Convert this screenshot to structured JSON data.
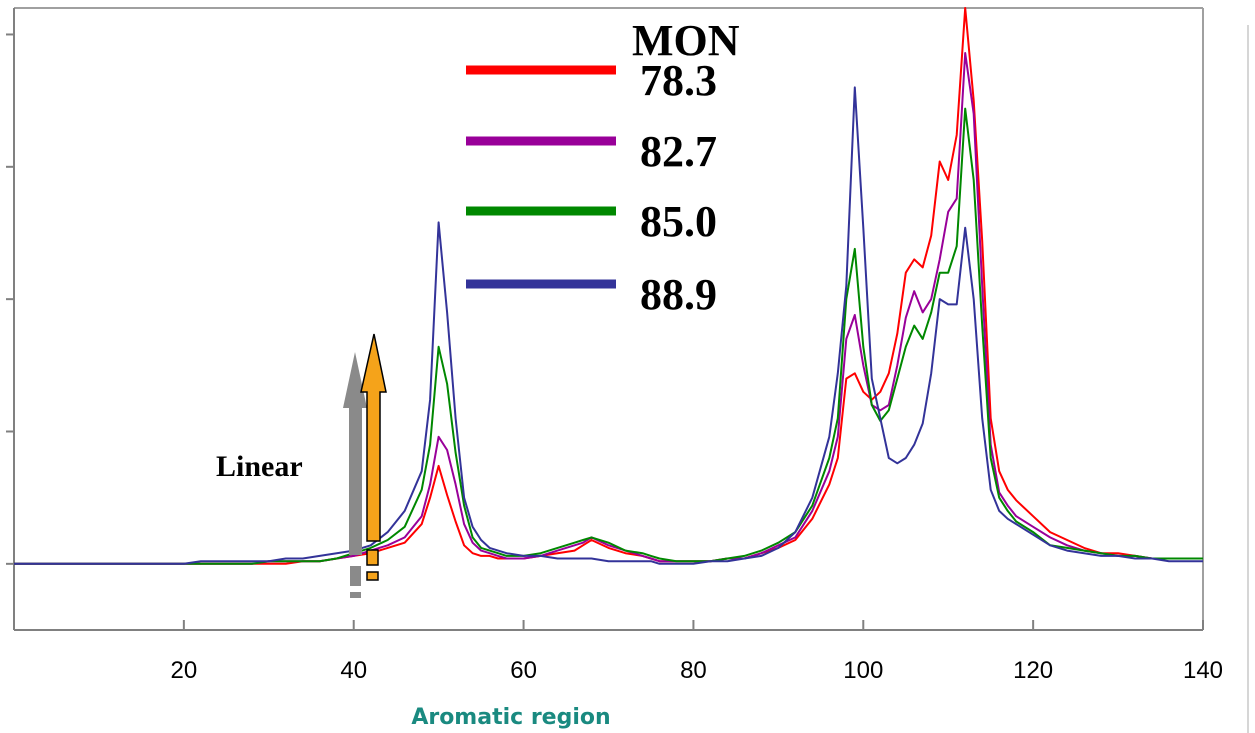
{
  "chart_data": {
    "type": "line",
    "title": "",
    "xlabel": "Aromatic region",
    "ylabel": "",
    "xlim": [
      0,
      140
    ],
    "ylim": [
      -0.25,
      2.1
    ],
    "x_ticks": [
      20,
      40,
      60,
      80,
      100,
      120,
      140
    ],
    "y_ticks": [
      0,
      0.5,
      1.0,
      1.5,
      2.0
    ],
    "grid": false,
    "legend": {
      "title": "MON",
      "placement": "top-center"
    },
    "annotations": [
      {
        "text": "Linear"
      }
    ],
    "colors": {
      "xlabel": "#1a8a80",
      "gray_arrow": "#8a8a8a",
      "orange_arrow": "#f5a31a",
      "axis": "#808080"
    },
    "x": [
      0,
      10,
      20,
      22,
      24,
      26,
      28,
      30,
      32,
      34,
      36,
      38,
      40,
      42,
      44,
      46,
      48,
      49,
      50,
      51,
      52,
      53,
      54,
      55,
      56,
      57,
      58,
      60,
      62,
      64,
      66,
      67,
      68,
      70,
      72,
      74,
      75,
      76,
      78,
      80,
      82,
      84,
      86,
      88,
      90,
      92,
      94,
      96,
      97,
      98,
      99,
      100,
      101,
      102,
      103,
      104,
      105,
      106,
      107,
      108,
      109,
      110,
      111,
      112,
      113,
      114,
      115,
      116,
      117,
      118,
      120,
      122,
      124,
      126,
      128,
      130,
      132,
      134,
      136,
      138,
      140
    ],
    "series": [
      {
        "name": "78.3",
        "color": "#ff0000",
        "values": [
          0,
          0,
          0,
          0,
          0,
          0,
          0,
          0,
          0,
          0.01,
          0.01,
          0.02,
          0.03,
          0.04,
          0.06,
          0.08,
          0.15,
          0.25,
          0.37,
          0.26,
          0.16,
          0.07,
          0.04,
          0.03,
          0.03,
          0.02,
          0.02,
          0.02,
          0.03,
          0.04,
          0.05,
          0.07,
          0.09,
          0.06,
          0.04,
          0.03,
          0.02,
          0.01,
          0.01,
          0.01,
          0.01,
          0.02,
          0.02,
          0.04,
          0.06,
          0.09,
          0.17,
          0.3,
          0.4,
          0.7,
          0.72,
          0.65,
          0.62,
          0.65,
          0.72,
          0.87,
          1.1,
          1.15,
          1.12,
          1.24,
          1.52,
          1.45,
          1.62,
          2.1,
          1.75,
          1.22,
          0.55,
          0.35,
          0.28,
          0.24,
          0.18,
          0.12,
          0.09,
          0.06,
          0.04,
          0.04,
          0.03,
          0.02,
          0.02,
          0.02,
          0.02
        ]
      },
      {
        "name": "82.7",
        "color": "#990099",
        "values": [
          0,
          0,
          0,
          0,
          0,
          0,
          0,
          0.01,
          0.01,
          0.01,
          0.01,
          0.02,
          0.03,
          0.05,
          0.07,
          0.1,
          0.18,
          0.3,
          0.48,
          0.43,
          0.3,
          0.15,
          0.08,
          0.05,
          0.04,
          0.03,
          0.02,
          0.02,
          0.03,
          0.05,
          0.07,
          0.08,
          0.1,
          0.07,
          0.05,
          0.03,
          0.02,
          0.01,
          0.01,
          0.01,
          0.01,
          0.02,
          0.02,
          0.04,
          0.07,
          0.1,
          0.2,
          0.35,
          0.48,
          0.85,
          0.94,
          0.75,
          0.6,
          0.58,
          0.6,
          0.75,
          0.93,
          1.03,
          0.95,
          1.0,
          1.15,
          1.33,
          1.38,
          1.93,
          1.7,
          1.05,
          0.45,
          0.27,
          0.22,
          0.18,
          0.14,
          0.1,
          0.07,
          0.05,
          0.04,
          0.03,
          0.03,
          0.02,
          0.02,
          0.02,
          0.02
        ]
      },
      {
        "name": "85.0",
        "color": "#008800",
        "values": [
          0,
          0,
          0,
          0,
          0,
          0,
          0,
          0.01,
          0.01,
          0.01,
          0.01,
          0.02,
          0.04,
          0.06,
          0.09,
          0.14,
          0.28,
          0.45,
          0.82,
          0.68,
          0.42,
          0.22,
          0.1,
          0.06,
          0.05,
          0.04,
          0.03,
          0.03,
          0.04,
          0.06,
          0.08,
          0.09,
          0.1,
          0.08,
          0.05,
          0.04,
          0.03,
          0.02,
          0.01,
          0.01,
          0.01,
          0.02,
          0.03,
          0.05,
          0.08,
          0.12,
          0.22,
          0.4,
          0.55,
          1.0,
          1.19,
          0.82,
          0.6,
          0.54,
          0.58,
          0.7,
          0.82,
          0.9,
          0.85,
          0.95,
          1.1,
          1.1,
          1.2,
          1.72,
          1.45,
          0.9,
          0.4,
          0.25,
          0.2,
          0.16,
          0.12,
          0.07,
          0.06,
          0.05,
          0.04,
          0.03,
          0.03,
          0.02,
          0.02,
          0.02,
          0.02
        ]
      },
      {
        "name": "88.9",
        "color": "#333399",
        "values": [
          0,
          0,
          0,
          0.01,
          0.01,
          0.01,
          0.01,
          0.01,
          0.02,
          0.02,
          0.03,
          0.04,
          0.05,
          0.07,
          0.12,
          0.2,
          0.35,
          0.62,
          1.29,
          0.95,
          0.55,
          0.25,
          0.14,
          0.09,
          0.06,
          0.05,
          0.04,
          0.03,
          0.03,
          0.02,
          0.02,
          0.02,
          0.02,
          0.01,
          0.01,
          0.01,
          0.01,
          0,
          0,
          0,
          0.01,
          0.01,
          0.02,
          0.03,
          0.06,
          0.12,
          0.25,
          0.48,
          0.72,
          1.05,
          1.8,
          1.27,
          0.7,
          0.55,
          0.4,
          0.38,
          0.4,
          0.45,
          0.53,
          0.72,
          1.0,
          0.98,
          0.98,
          1.27,
          1.0,
          0.55,
          0.28,
          0.2,
          0.17,
          0.15,
          0.11,
          0.07,
          0.05,
          0.04,
          0.03,
          0.03,
          0.02,
          0.02,
          0.01,
          0.01,
          0.01
        ]
      }
    ]
  }
}
